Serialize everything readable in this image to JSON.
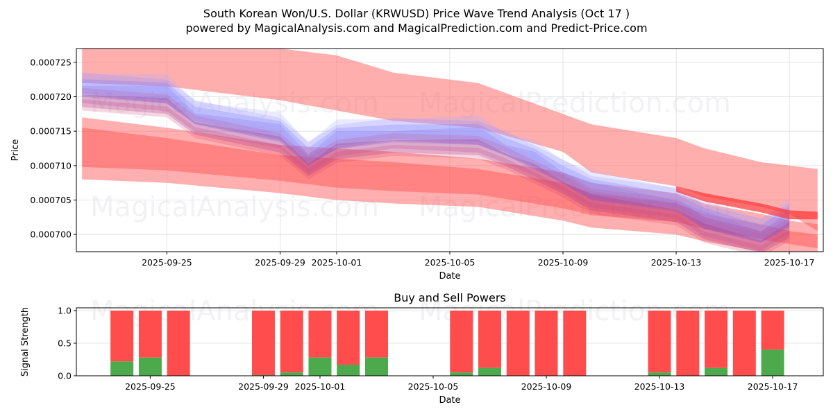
{
  "header": {
    "title": "South Korean Won/U.S. Dollar (KRWUSD) Price Wave Trend Analysis (Oct 17 )",
    "subtitle": "powered by MagicalAnalysis.com and MagicalPrediction.com and Predict-Price.com"
  },
  "watermarks": [
    "MagicalAnalysis.com",
    "MagicalPrediction.com"
  ],
  "colors": {
    "upper_band": "#ff6b6b",
    "lower_band": "#ff4d4d",
    "wave_blue": "#5a5aff",
    "wave_purple": "#9b2d8a",
    "buy": "#4caa4c",
    "sell": "#ff4d4d",
    "grid": "#dddddd"
  },
  "chart_data": [
    {
      "id": "price-wave",
      "type": "area",
      "title": "",
      "xlabel": "Date",
      "ylabel": "Price",
      "xlim": [
        "2025-09-21.8",
        "2025-10-18.2"
      ],
      "ylim": [
        0.0006975,
        0.000727
      ],
      "grid": true,
      "x_ticks": [
        "2025-09-25",
        "2025-09-29",
        "2025-10-01",
        "2025-10-05",
        "2025-10-09",
        "2025-10-13",
        "2025-10-17"
      ],
      "y_ticks": [
        "0.000700",
        "0.000705",
        "0.000710",
        "0.000715",
        "0.000720",
        "0.000725"
      ],
      "y_tick_values": [
        0.0007,
        0.000705,
        0.00071,
        0.000715,
        0.00072,
        0.000725
      ],
      "series": [
        {
          "name": "upper-band",
          "dates": [
            "2025-09-22",
            "2025-09-25",
            "2025-09-29",
            "2025-10-01",
            "2025-10-03",
            "2025-10-06",
            "2025-10-09",
            "2025-10-10",
            "2025-10-13",
            "2025-10-14",
            "2025-10-16",
            "2025-10-17",
            "2025-10-18"
          ],
          "upper": [
            0.000728,
            0.000728,
            0.000727,
            0.000726,
            0.0007235,
            0.000722,
            0.0007175,
            0.000716,
            0.000714,
            0.0007125,
            0.0007105,
            0.00071,
            0.0007095
          ],
          "lower": [
            0.000722,
            0.0007215,
            0.0007195,
            0.000718,
            0.0007165,
            0.0007155,
            0.000712,
            0.000709,
            0.000707,
            0.0007055,
            0.000704,
            0.000703,
            0.0007005
          ]
        },
        {
          "name": "lower-band",
          "dates": [
            "2025-09-22",
            "2025-09-25",
            "2025-09-29",
            "2025-10-01",
            "2025-10-03",
            "2025-10-06",
            "2025-10-09",
            "2025-10-10",
            "2025-10-13",
            "2025-10-14",
            "2025-10-16",
            "2025-10-17",
            "2025-10-18"
          ],
          "upper": [
            0.000717,
            0.0007155,
            0.000713,
            0.0007125,
            0.000712,
            0.000711,
            0.000709,
            0.0007075,
            0.000706,
            0.0007045,
            0.000703,
            0.000702,
            0.0007015
          ],
          "lower": [
            0.000708,
            0.0007075,
            0.000706,
            0.000705,
            0.0007045,
            0.000704,
            0.000702,
            0.000701,
            0.0007,
            0.000699,
            0.0006975,
            0.0006968,
            0.0006962
          ]
        },
        {
          "name": "trend-line-band",
          "dates": [
            "2025-10-13",
            "2025-10-14",
            "2025-10-16",
            "2025-10-17",
            "2025-10-18"
          ],
          "upper": [
            0.000707,
            0.000706,
            0.0007045,
            0.0007035,
            0.0007033
          ],
          "lower": [
            0.0007062,
            0.0007048,
            0.0007032,
            0.0007022,
            0.0007022
          ]
        },
        {
          "name": "price-wave-center",
          "dates": [
            "2025-09-22",
            "2025-09-25",
            "2025-09-26",
            "2025-09-29",
            "2025-09-30",
            "2025-10-01",
            "2025-10-03",
            "2025-10-06",
            "2025-10-07",
            "2025-10-08",
            "2025-10-09",
            "2025-10-10",
            "2025-10-13",
            "2025-10-14",
            "2025-10-16",
            "2025-10-17"
          ],
          "values": [
            0.000721,
            0.00072,
            0.000717,
            0.0007144,
            0.000711,
            0.0007134,
            0.0007144,
            0.000714,
            0.0007124,
            0.0007104,
            0.0007084,
            0.000706,
            0.0007043,
            0.0007018,
            0.0006998,
            0.000702
          ]
        }
      ]
    },
    {
      "id": "buy-sell-powers",
      "type": "bar",
      "title": "Buy and Sell Powers",
      "xlabel": "Date",
      "ylabel": "Signal Strength",
      "ylim": [
        0,
        1.0
      ],
      "grid": true,
      "x_ticks": [
        "2025-09-25",
        "2025-09-29",
        "2025-10-01",
        "2025-10-05",
        "2025-10-09",
        "2025-10-13",
        "2025-10-17"
      ],
      "y_ticks": [
        "0.0",
        "0.5",
        "1.0"
      ],
      "y_tick_values": [
        0,
        0.5,
        1.0
      ],
      "categories": [
        "2025-09-24",
        "2025-09-25",
        "2025-09-26",
        "2025-09-29",
        "2025-09-30",
        "2025-10-01",
        "2025-10-02",
        "2025-10-03",
        "2025-10-06",
        "2025-10-07",
        "2025-10-08",
        "2025-10-09",
        "2025-10-10",
        "2025-10-13",
        "2025-10-14",
        "2025-10-15",
        "2025-10-16",
        "2025-10-17"
      ],
      "series": [
        {
          "name": "Buy",
          "values": [
            0.22,
            0.28,
            0.0,
            0.01,
            0.05,
            0.28,
            0.17,
            0.28,
            0.05,
            0.12,
            0.0,
            0.0,
            0.0,
            0.05,
            0.0,
            0.12,
            0.0,
            0.4
          ]
        },
        {
          "name": "Sell",
          "values": [
            0.78,
            0.72,
            1.0,
            0.99,
            0.95,
            0.72,
            0.83,
            0.72,
            0.95,
            0.88,
            1.0,
            1.0,
            1.0,
            0.95,
            1.0,
            0.88,
            1.0,
            0.6
          ]
        }
      ]
    }
  ]
}
